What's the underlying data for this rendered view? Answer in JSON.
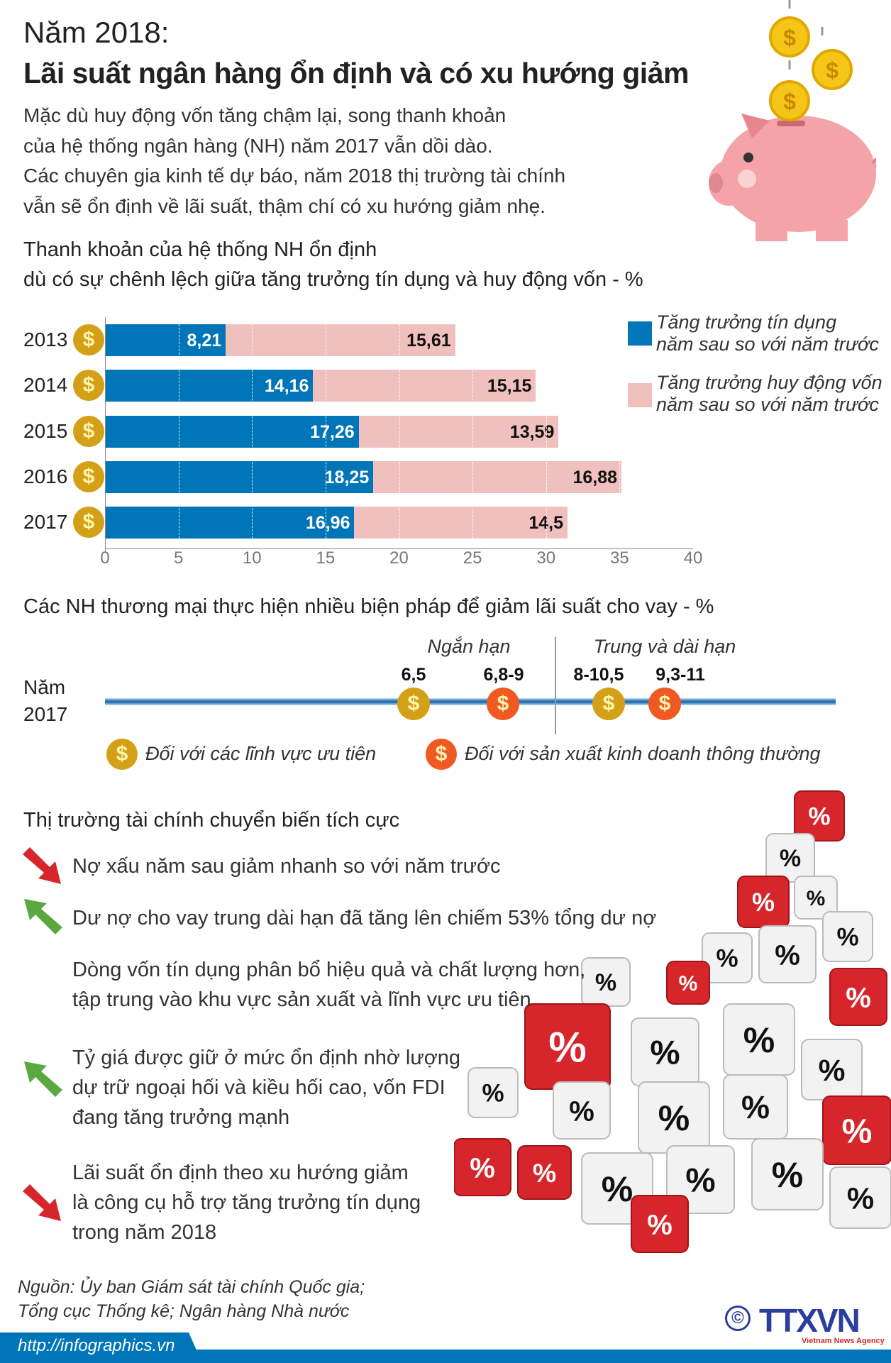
{
  "header": {
    "line1": "Năm 2018:",
    "line2": "Lãi suất ngân hàng ổn định và có xu hướng giảm"
  },
  "intro": [
    "Mặc dù huy động vốn tăng chậm lại, song thanh khoản",
    "của hệ thống ngân hàng (NH) năm 2017 vẫn dồi dào.",
    "Các chuyên gia kinh tế dự báo, năm 2018 thị trường tài chính",
    "vẫn sẽ ổn định về lãi suất, thậm chí có xu hướng giảm nhẹ."
  ],
  "chart_data": [
    {
      "type": "bar",
      "stacked": true,
      "orientation": "horizontal",
      "title": [
        "Thanh khoản của hệ thống NH ổn định",
        "dù có sự chênh lệch giữa tăng trưởng tín dụng và huy động vốn - %"
      ],
      "categories": [
        "2013",
        "2014",
        "2015",
        "2016",
        "2017"
      ],
      "series": [
        {
          "name": "Tăng trưởng tín dụng năm sau so với năm trước",
          "name_lines": [
            "Tăng trưởng tín dụng",
            "năm sau so với năm trước"
          ],
          "color": "#0076b8",
          "values": [
            8.21,
            14.16,
            17.26,
            18.25,
            16.96
          ],
          "labels": [
            "8,21",
            "14,16",
            "17,26",
            "18,25",
            "16,96"
          ]
        },
        {
          "name": "Tăng trưởng huy động vốn năm sau so với năm trước",
          "name_lines": [
            "Tăng trưởng huy động vốn",
            "năm sau so với năm trước"
          ],
          "color": "#f0c0bf",
          "values": [
            15.61,
            15.15,
            13.59,
            16.88,
            14.5
          ],
          "labels": [
            "15,61",
            "15,15",
            "13,59",
            "16,88",
            "14,5"
          ]
        }
      ],
      "xlim": [
        0,
        40
      ],
      "xticks": [
        "0",
        "5",
        "10",
        "15",
        "20",
        "25",
        "30",
        "35",
        "40"
      ],
      "grid": "dashed vertical",
      "legend": "right"
    },
    {
      "type": "table",
      "title": "Các NH thương mại thực hiện nhiều biện pháp để giảm lãi suất cho vay - %",
      "row_label": [
        "Năm",
        "2017"
      ],
      "groups": [
        "Ngắn hạn",
        "Trung và dài hạn"
      ],
      "points": [
        {
          "group": "Ngắn hạn",
          "category": "priority",
          "value": "6,5"
        },
        {
          "group": "Ngắn hạn",
          "category": "normal",
          "value": "6,8-9"
        },
        {
          "group": "Trung và dài hạn",
          "category": "priority",
          "value": "8-10,5"
        },
        {
          "group": "Trung và dài hạn",
          "category": "normal",
          "value": "9,3-11"
        }
      ],
      "legend": [
        {
          "key": "priority",
          "label": "Đối với các lĩnh vực ưu tiên",
          "color": "#d4a017"
        },
        {
          "key": "normal",
          "label": "Đối với sản xuất kinh doanh thông thường",
          "color": "#f05a22"
        }
      ]
    }
  ],
  "market": {
    "title": "Thị trường tài chính chuyển biến tích cực",
    "items": [
      {
        "arrow": "red-down",
        "lines": [
          "Nợ xấu năm sau giảm nhanh so với năm trước"
        ]
      },
      {
        "arrow": "green-up",
        "lines": [
          "Dư nợ cho vay trung dài hạn đã tăng lên chiếm 53% tổng dư nợ"
        ]
      },
      {
        "arrow": "none",
        "lines": [
          "Dòng vốn tín dụng phân bổ hiệu quả và chất lượng hơn,",
          "tập trung vào khu vực sản xuất và lĩnh vực ưu tiên"
        ]
      },
      {
        "arrow": "green-up",
        "lines": [
          "Tỷ giá được giữ ở mức ổn định nhờ lượng",
          "dự trữ ngoại hối và kiều hối cao, vốn FDI",
          "đang tăng trưởng mạnh"
        ]
      },
      {
        "arrow": "red-down",
        "lines": [
          "Lãi suất ổn định theo xu hướng giảm",
          "là công cụ hỗ trợ tăng trưởng tín dụng",
          "trong năm 2018"
        ]
      }
    ]
  },
  "source": [
    "Nguồn: Ủy ban Giám sát tài chính Quốc gia;",
    "Tổng cục Thống kê; Ngân hàng Nhà nước"
  ],
  "footer": {
    "url": "http://infographics.vn",
    "logo": "TTXVN",
    "logo_sub": "Vietnam News Agency",
    "copyright": "©"
  },
  "colors": {
    "blue": "#0076b8",
    "pink": "#f0c0bf",
    "gold": "#d4a017",
    "orange": "#f05a22",
    "red": "#d7262b",
    "green": "#5aa840"
  },
  "icons": {
    "coin": "$",
    "die": "%"
  }
}
